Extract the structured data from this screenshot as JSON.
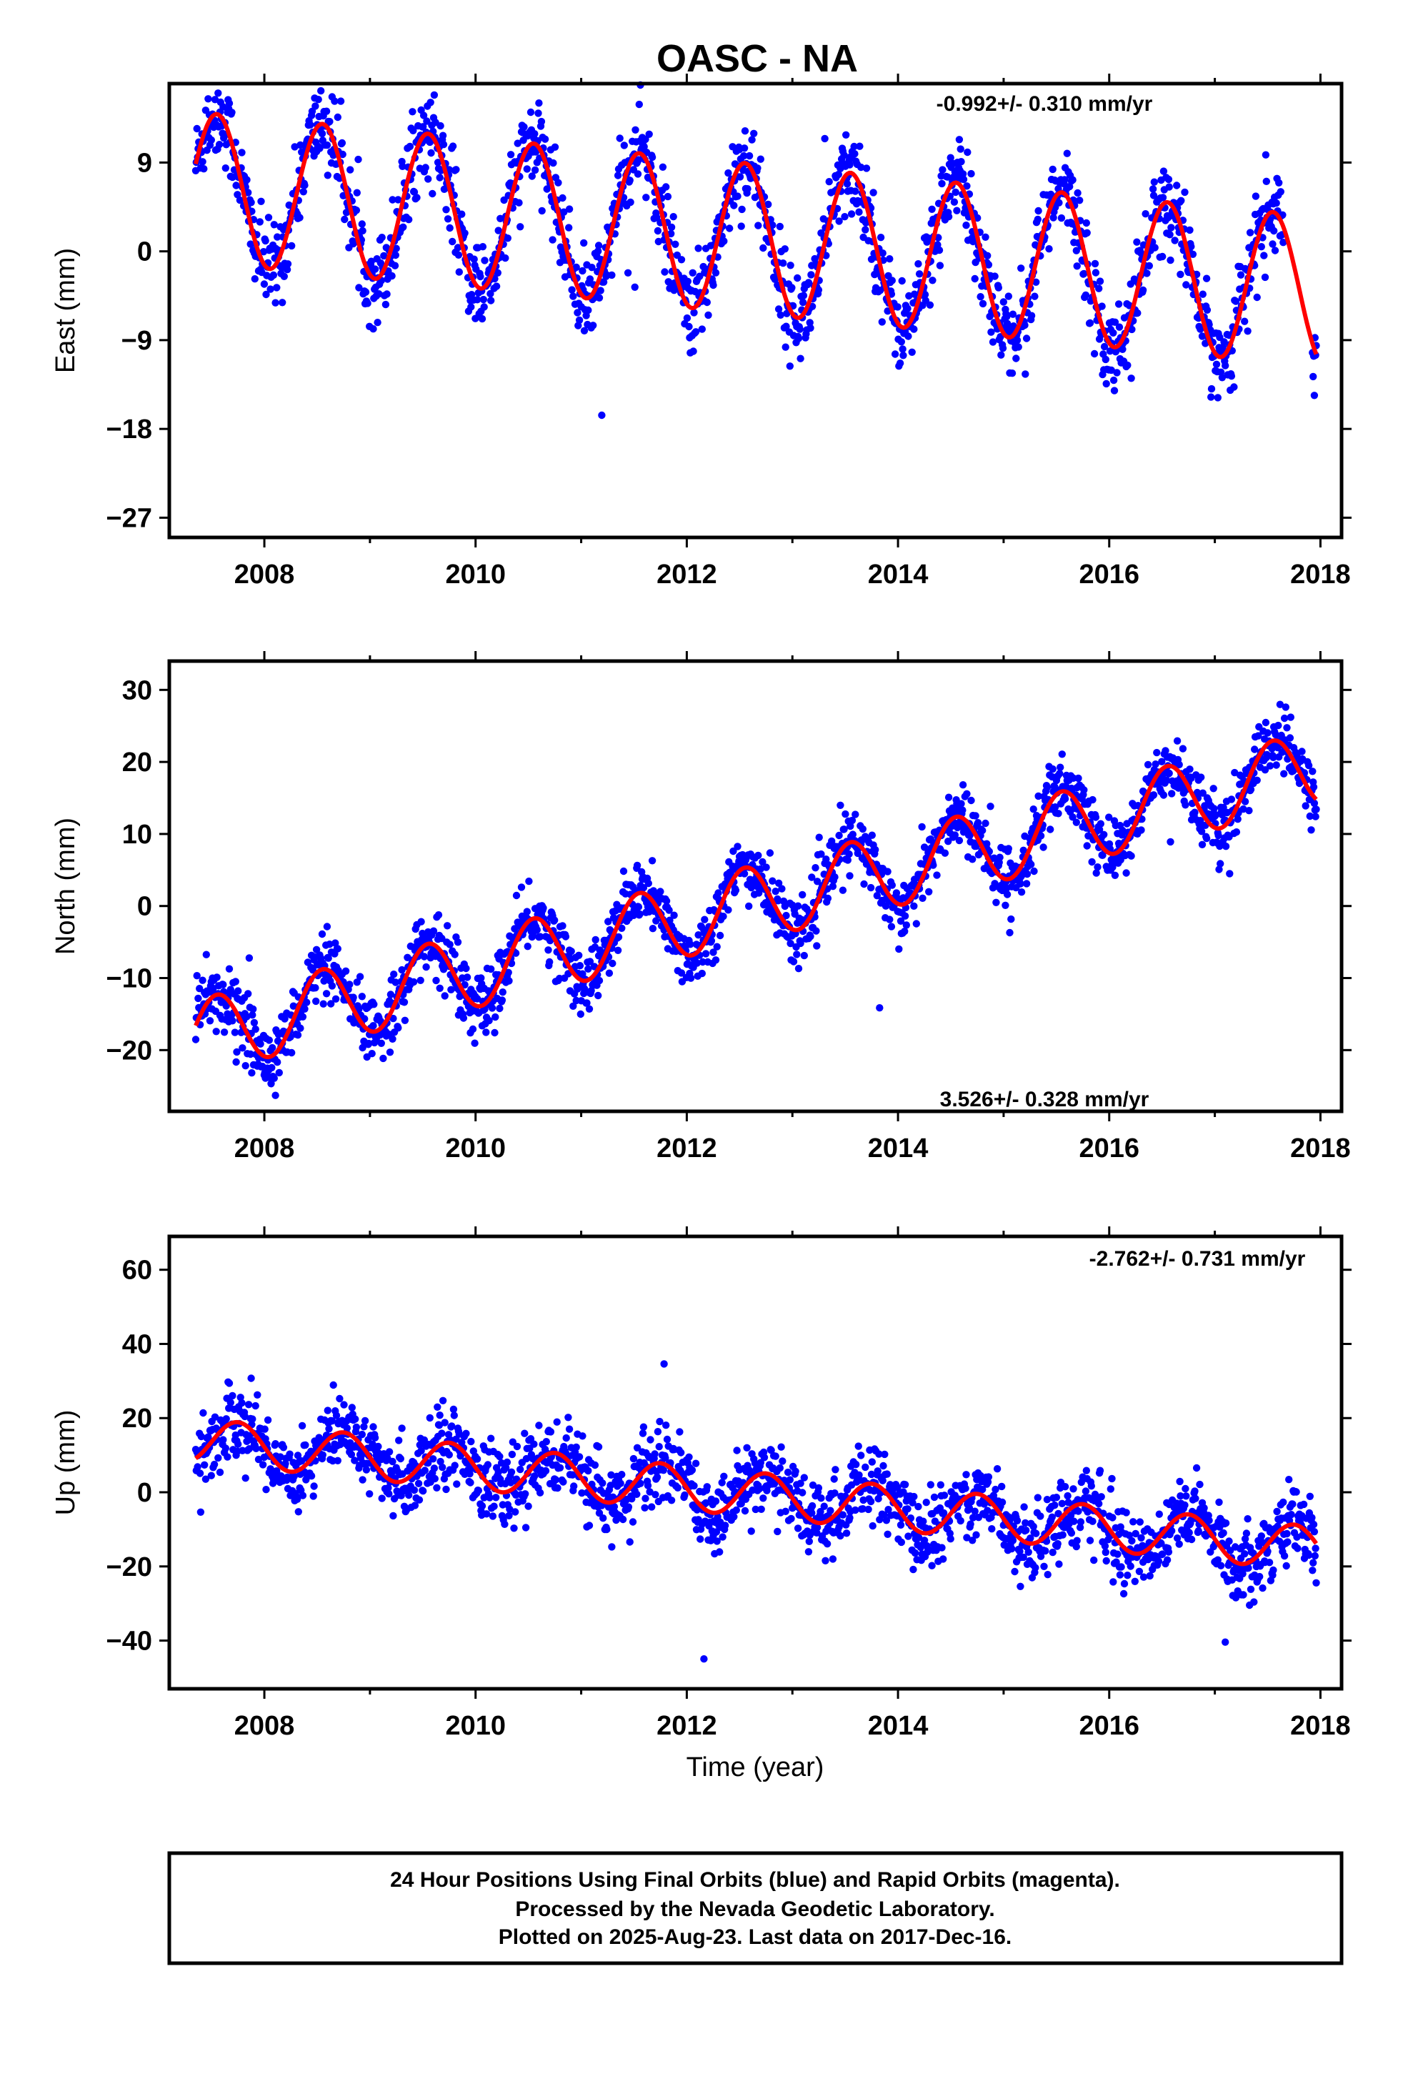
{
  "title": "OASC - NA",
  "xlabel": "Time (year)",
  "caption": {
    "line1": "24 Hour Positions Using Final Orbits (blue) and Rapid Orbits (magenta).",
    "line2": "Processed by the Nevada Geodetic Laboratory.",
    "line3": "Plotted on 2025-Aug-23. Last data on 2017-Dec-16."
  },
  "colors": {
    "final_orbits": "#0000ff",
    "fit": "#ff0000",
    "frame": "#000000"
  },
  "chart_data": [
    {
      "type": "scatter",
      "component": "east",
      "ylabel": "East (mm)",
      "rate_label": "-0.992+/- 0.310 mm/yr",
      "xlim": [
        2007.1,
        2018.2
      ],
      "ylim": [
        -29,
        17
      ],
      "xticks": [
        "2008",
        "2010",
        "2012",
        "2014",
        "2016",
        "2018"
      ],
      "yticks": [
        "9",
        "0",
        "−9",
        "−18",
        "−27"
      ],
      "ytick_values": [
        9,
        0,
        -9,
        -18,
        -27
      ],
      "data_span": [
        2007.35,
        2017.96
      ],
      "fit": {
        "offset": 1.3,
        "ref_year": 2012.6,
        "rate": -0.992,
        "annual_amp": 7.6,
        "phase": 2007.55
      },
      "scatter_noise": 2.2,
      "series": [
        {
          "values": [
            [
              2007.35,
              8.4
            ],
            [
              2007.55,
              12.0
            ],
            [
              2007.8,
              5.0
            ],
            [
              2008.0,
              -3.1
            ],
            [
              2008.3,
              1.5
            ],
            [
              2008.55,
              11.0
            ],
            [
              2009.0,
              -4.2
            ],
            [
              2009.55,
              10.0
            ],
            [
              2010.0,
              -5.4
            ],
            [
              2010.55,
              9.0
            ],
            [
              2011.0,
              -6.2
            ],
            [
              2011.55,
              8.1
            ],
            [
              2012.0,
              -7.1
            ],
            [
              2012.55,
              7.3
            ],
            [
              2013.0,
              -8.2
            ],
            [
              2013.55,
              6.3
            ],
            [
              2014.0,
              -9.1
            ],
            [
              2014.55,
              5.3
            ],
            [
              2015.0,
              -10.1
            ],
            [
              2015.55,
              4.3
            ],
            [
              2016.0,
              -11.1
            ],
            [
              2016.55,
              3.3
            ],
            [
              2017.0,
              -12.1
            ],
            [
              2017.55,
              2.6
            ],
            [
              2017.96,
              -12.7
            ]
          ]
        }
      ]
    },
    {
      "type": "scatter",
      "component": "north",
      "ylabel": "North (mm)",
      "rate_label": "3.526+/- 0.328 mm/yr",
      "xlim": [
        2007.1,
        2018.2
      ],
      "ylim": [
        -28.5,
        34
      ],
      "xticks": [
        "2008",
        "2010",
        "2012",
        "2014",
        "2016",
        "2018"
      ],
      "yticks": [
        "30",
        "20",
        "10",
        "0",
        "−10",
        "−20"
      ],
      "ytick_values": [
        30,
        20,
        10,
        0,
        -10,
        -20
      ],
      "data_span": [
        2007.35,
        2017.96
      ],
      "fit": {
        "offset": 0.3,
        "ref_year": 2012.6,
        "rate": 3.526,
        "annual_amp": 5.2,
        "phase": 2007.55
      },
      "scatter_noise": 2.2,
      "series": [
        {
          "values": [
            [
              2007.35,
              -17.0
            ],
            [
              2007.55,
              -11.3
            ],
            [
              2008.0,
              -21.5
            ],
            [
              2008.55,
              -8.5
            ],
            [
              2009.0,
              -18.2
            ],
            [
              2009.55,
              -4.8
            ],
            [
              2010.0,
              -14.9
            ],
            [
              2010.55,
              -1.2
            ],
            [
              2011.0,
              -11.1
            ],
            [
              2011.55,
              2.5
            ],
            [
              2012.0,
              -7.7
            ],
            [
              2012.55,
              6.0
            ],
            [
              2013.0,
              -4.0
            ],
            [
              2013.55,
              9.5
            ],
            [
              2014.0,
              -0.6
            ],
            [
              2014.55,
              13.0
            ],
            [
              2015.0,
              3.0
            ],
            [
              2015.55,
              16.5
            ],
            [
              2016.0,
              6.5
            ],
            [
              2016.55,
              20.0
            ],
            [
              2017.0,
              10.0
            ],
            [
              2017.55,
              23.5
            ],
            [
              2017.96,
              13.5
            ]
          ]
        }
      ]
    },
    {
      "type": "scatter",
      "component": "up",
      "ylabel": "Up (mm)",
      "rate_label": "-2.762+/- 0.731 mm/yr",
      "xlim": [
        2007.1,
        2018.2
      ],
      "ylim": [
        -53,
        69
      ],
      "xticks": [
        "2008",
        "2010",
        "2012",
        "2014",
        "2016",
        "2018"
      ],
      "yticks": [
        "60",
        "40",
        "20",
        "0",
        "−20",
        "−40"
      ],
      "ytick_values": [
        60,
        40,
        20,
        0,
        -20,
        -40
      ],
      "data_span": [
        2007.35,
        2017.96
      ],
      "fit": {
        "offset": -0.5,
        "ref_year": 2012.6,
        "rate": -2.762,
        "annual_amp": 6.0,
        "phase": 2007.75
      },
      "scatter_noise": 5.0,
      "series": [
        {
          "values": [
            [
              2007.35,
              6.0
            ],
            [
              2007.7,
              19.0
            ],
            [
              2008.3,
              3.5
            ],
            [
              2008.7,
              16.0
            ],
            [
              2009.3,
              1.0
            ],
            [
              2009.7,
              13.0
            ],
            [
              2010.3,
              -2.0
            ],
            [
              2010.7,
              10.0
            ],
            [
              2011.3,
              -5.0
            ],
            [
              2011.7,
              8.0
            ],
            [
              2012.3,
              -7.5
            ],
            [
              2012.7,
              5.0
            ],
            [
              2013.3,
              -10.5
            ],
            [
              2013.7,
              2.5
            ],
            [
              2014.3,
              -13.0
            ],
            [
              2014.7,
              -0.5
            ],
            [
              2015.3,
              -16.0
            ],
            [
              2015.7,
              -3.0
            ],
            [
              2016.3,
              -18.5
            ],
            [
              2016.7,
              -6.0
            ],
            [
              2017.3,
              -21.5
            ],
            [
              2017.7,
              -9.0
            ],
            [
              2017.96,
              -14.0
            ]
          ]
        }
      ]
    }
  ]
}
